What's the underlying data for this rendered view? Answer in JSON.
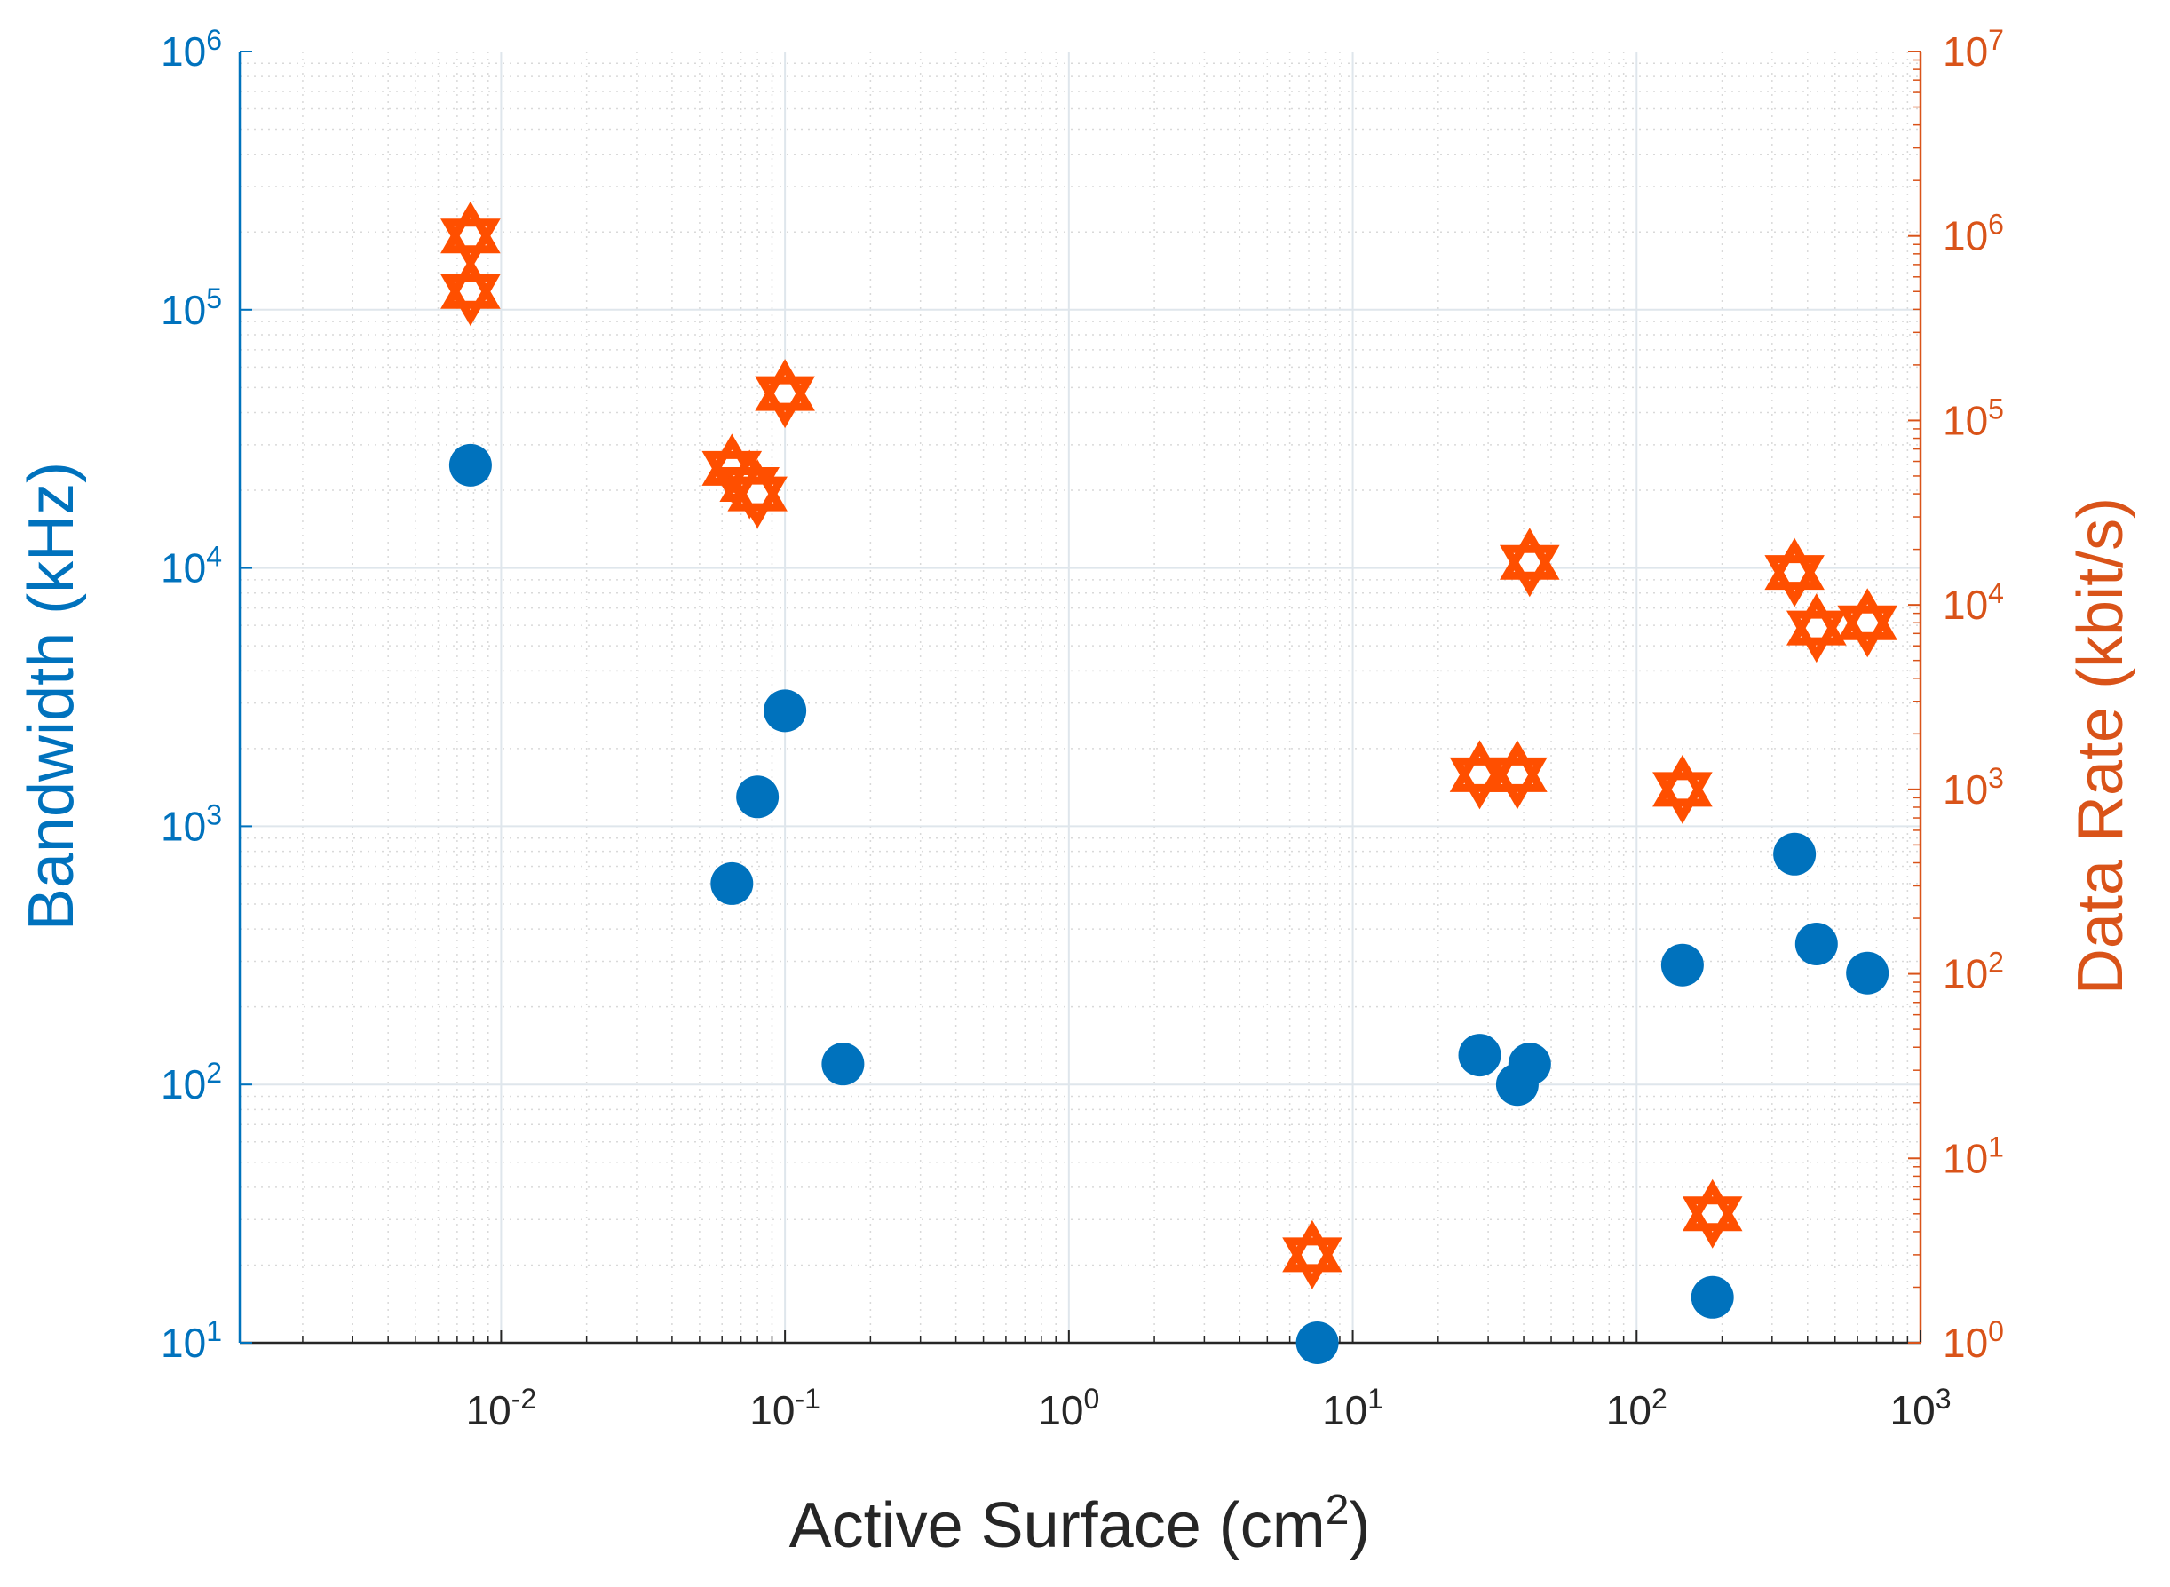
{
  "chart_data": {
    "type": "scatter",
    "title": "",
    "xlabel": {
      "text": "Active Surface (cm",
      "sup": "2",
      "tail": ")"
    },
    "ylabel_left": "Bandwidth (kHz)",
    "ylabel_right": "Data Rate (kbit/s)",
    "xscale": "log",
    "yscale_left": "log",
    "yscale_right": "log",
    "xlim": [
      0.0012,
      1000
    ],
    "ylim_left": [
      10,
      1000000
    ],
    "ylim_right": [
      1,
      10000000
    ],
    "grid": true,
    "x_ticks": [
      {
        "value": 0.01,
        "base": "10",
        "exp": "-2"
      },
      {
        "value": 0.1,
        "base": "10",
        "exp": "-1"
      },
      {
        "value": 1,
        "base": "10",
        "exp": "0"
      },
      {
        "value": 10,
        "base": "10",
        "exp": "1"
      },
      {
        "value": 100,
        "base": "10",
        "exp": "2"
      },
      {
        "value": 1000,
        "base": "10",
        "exp": "3"
      }
    ],
    "y_left_ticks": [
      {
        "value": 10,
        "base": "10",
        "exp": "1"
      },
      {
        "value": 100,
        "base": "10",
        "exp": "2"
      },
      {
        "value": 1000,
        "base": "10",
        "exp": "3"
      },
      {
        "value": 10000,
        "base": "10",
        "exp": "4"
      },
      {
        "value": 100000,
        "base": "10",
        "exp": "5"
      },
      {
        "value": 1000000,
        "base": "10",
        "exp": "6"
      }
    ],
    "y_right_ticks": [
      {
        "value": 1,
        "base": "10",
        "exp": "0"
      },
      {
        "value": 10,
        "base": "10",
        "exp": "1"
      },
      {
        "value": 100,
        "base": "10",
        "exp": "2"
      },
      {
        "value": 1000,
        "base": "10",
        "exp": "3"
      },
      {
        "value": 10000,
        "base": "10",
        "exp": "4"
      },
      {
        "value": 100000,
        "base": "10",
        "exp": "5"
      },
      {
        "value": 1000000,
        "base": "10",
        "exp": "6"
      },
      {
        "value": 10000000,
        "base": "10",
        "exp": "7"
      }
    ],
    "series": [
      {
        "name": "Bandwidth",
        "axis": "left",
        "marker": "circle",
        "color": "#0072BD",
        "points": [
          {
            "x": 0.0078,
            "y": 25000
          },
          {
            "x": 0.065,
            "y": 600
          },
          {
            "x": 0.08,
            "y": 1300
          },
          {
            "x": 0.1,
            "y": 2800
          },
          {
            "x": 0.16,
            "y": 120
          },
          {
            "x": 7.5,
            "y": 10
          },
          {
            "x": 28,
            "y": 130
          },
          {
            "x": 38,
            "y": 100
          },
          {
            "x": 42,
            "y": 120
          },
          {
            "x": 145,
            "y": 290
          },
          {
            "x": 185,
            "y": 15
          },
          {
            "x": 360,
            "y": 780
          },
          {
            "x": 430,
            "y": 350
          },
          {
            "x": 650,
            "y": 270
          }
        ]
      },
      {
        "name": "Data Rate",
        "axis": "right",
        "marker": "hexagram",
        "color": "#FF4F00",
        "points": [
          {
            "x": 0.0078,
            "y": 1000000
          },
          {
            "x": 0.0078,
            "y": 500000
          },
          {
            "x": 0.065,
            "y": 55000
          },
          {
            "x": 0.075,
            "y": 45000
          },
          {
            "x": 0.08,
            "y": 40000
          },
          {
            "x": 0.1,
            "y": 140000
          },
          {
            "x": 7.2,
            "y": 3
          },
          {
            "x": 28,
            "y": 1200
          },
          {
            "x": 38,
            "y": 1200
          },
          {
            "x": 42,
            "y": 17000
          },
          {
            "x": 145,
            "y": 1000
          },
          {
            "x": 185,
            "y": 5
          },
          {
            "x": 360,
            "y": 15000
          },
          {
            "x": 430,
            "y": 7500
          },
          {
            "x": 650,
            "y": 8000
          }
        ]
      }
    ]
  }
}
